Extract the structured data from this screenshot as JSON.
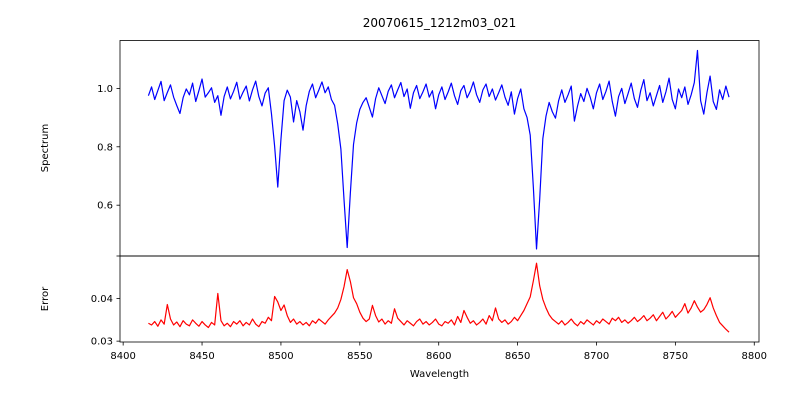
{
  "figure": {
    "title": "20070615_1212m03_021",
    "xlabel": "Wavelength",
    "background": "#ffffff",
    "spine_color": "#000000",
    "text_color": "#000000"
  },
  "chart_data": [
    {
      "type": "line",
      "name": "spectrum",
      "ylabel": "Spectrum",
      "color": "#0000ff",
      "line_width": 1.2,
      "grid": false,
      "legend": null,
      "xlim": [
        8398,
        8803
      ],
      "ylim": [
        0.426,
        1.164
      ],
      "yticks": [
        0.6,
        0.8,
        1.0
      ],
      "ytick_labels": [
        "0.6",
        "0.8",
        "1.0"
      ],
      "yticks_unlabeled": [],
      "absorption_lines": [
        {
          "center": 8498,
          "core_depth": 0.66
        },
        {
          "center": 8542,
          "core_depth": 0.455
        },
        {
          "center": 8662,
          "core_depth": 0.45
        }
      ],
      "x_start": 8416,
      "x_step": 2,
      "y": [
        0.975,
        1.005,
        0.962,
        0.993,
        1.024,
        0.958,
        0.986,
        1.012,
        0.97,
        0.941,
        0.914,
        0.968,
        0.998,
        0.978,
        1.018,
        0.955,
        0.992,
        1.032,
        0.97,
        0.985,
        1.002,
        0.952,
        0.975,
        0.908,
        0.972,
        1.005,
        0.964,
        0.99,
        1.021,
        0.963,
        0.987,
        1.008,
        0.957,
        0.995,
        1.025,
        0.972,
        0.94,
        0.984,
        1.002,
        0.913,
        0.802,
        0.662,
        0.825,
        0.958,
        0.994,
        0.97,
        0.885,
        0.958,
        0.92,
        0.857,
        0.941,
        0.99,
        1.015,
        0.968,
        0.994,
        1.022,
        0.985,
        1.005,
        0.962,
        0.942,
        0.878,
        0.792,
        0.618,
        0.455,
        0.642,
        0.808,
        0.882,
        0.928,
        0.952,
        0.968,
        0.935,
        0.902,
        0.965,
        1.002,
        0.975,
        0.948,
        0.99,
        1.012,
        0.968,
        0.995,
        1.02,
        0.972,
        0.998,
        0.932,
        0.985,
        1.01,
        0.965,
        0.988,
        1.015,
        0.97,
        0.992,
        0.93,
        0.978,
        1.005,
        0.962,
        0.988,
        1.018,
        0.975,
        0.945,
        0.992,
        1.01,
        0.968,
        0.99,
        1.022,
        0.978,
        0.952,
        0.995,
        1.015,
        0.972,
        0.998,
        0.96,
        0.985,
        1.012,
        0.97,
        0.942,
        0.988,
        0.912,
        0.965,
        0.998,
        0.93,
        0.9,
        0.84,
        0.66,
        0.45,
        0.62,
        0.828,
        0.905,
        0.952,
        0.92,
        0.898,
        0.958,
        0.995,
        0.952,
        0.978,
        1.008,
        0.888,
        0.94,
        0.982,
        0.955,
        1.0,
        0.97,
        0.93,
        0.985,
        1.015,
        0.962,
        0.99,
        1.025,
        0.955,
        0.905,
        0.972,
        1.0,
        0.948,
        0.982,
        1.018,
        0.965,
        0.935,
        0.992,
        1.03,
        0.958,
        0.985,
        0.94,
        0.975,
        1.01,
        0.952,
        0.988,
        1.035,
        0.962,
        0.93,
        0.998,
        0.968,
        1.005,
        0.945,
        0.978,
        1.02,
        1.13,
        0.958,
        0.912,
        0.985,
        1.042,
        0.955,
        0.928,
        0.995,
        0.962,
        1.008,
        0.97
      ]
    },
    {
      "type": "line",
      "name": "error",
      "ylabel": "Error",
      "xlabel": "Wavelength",
      "color": "#ff0000",
      "line_width": 1.2,
      "grid": false,
      "legend": null,
      "xlim": [
        8398,
        8803
      ],
      "ylim": [
        0.0298,
        0.05
      ],
      "yticks": [
        0.03,
        0.04
      ],
      "ytick_labels": [
        "0.03",
        "0.04"
      ],
      "yticks_unlabeled": [
        0.05
      ],
      "xticks": [
        8400,
        8450,
        8500,
        8550,
        8600,
        8650,
        8700,
        8750,
        8800
      ],
      "xtick_labels": [
        "8400",
        "8450",
        "8500",
        "8550",
        "8600",
        "8650",
        "8700",
        "8750",
        "8800"
      ],
      "x_start": 8416,
      "x_step": 2,
      "y": [
        0.0342,
        0.0338,
        0.0346,
        0.0335,
        0.035,
        0.034,
        0.0386,
        0.0352,
        0.0338,
        0.0345,
        0.0334,
        0.0348,
        0.034,
        0.0336,
        0.035,
        0.0342,
        0.0335,
        0.0346,
        0.0338,
        0.0332,
        0.0344,
        0.0338,
        0.0412,
        0.0348,
        0.0336,
        0.0342,
        0.0334,
        0.0346,
        0.034,
        0.0348,
        0.0336,
        0.0344,
        0.0338,
        0.0352,
        0.034,
        0.0334,
        0.0346,
        0.0342,
        0.0356,
        0.0348,
        0.0405,
        0.0392,
        0.0372,
        0.0385,
        0.036,
        0.0344,
        0.0352,
        0.034,
        0.0346,
        0.0338,
        0.0344,
        0.0336,
        0.0348,
        0.0342,
        0.0352,
        0.0346,
        0.034,
        0.035,
        0.0358,
        0.0366,
        0.0378,
        0.0398,
        0.0428,
        0.0468,
        0.044,
        0.0402,
        0.0388,
        0.0368,
        0.0354,
        0.0346,
        0.0352,
        0.0384,
        0.036,
        0.0345,
        0.0352,
        0.034,
        0.0348,
        0.0342,
        0.0376,
        0.0354,
        0.0346,
        0.0338,
        0.0348,
        0.0342,
        0.0336,
        0.0346,
        0.0352,
        0.034,
        0.0346,
        0.0338,
        0.0344,
        0.0352,
        0.034,
        0.0336,
        0.0346,
        0.0342,
        0.035,
        0.0338,
        0.0358,
        0.0344,
        0.0372,
        0.0356,
        0.0342,
        0.0348,
        0.0338,
        0.0344,
        0.0352,
        0.034,
        0.036,
        0.0348,
        0.0378,
        0.0352,
        0.0344,
        0.035,
        0.034,
        0.0346,
        0.0356,
        0.0348,
        0.036,
        0.0372,
        0.0388,
        0.0404,
        0.0442,
        0.0483,
        0.043,
        0.0398,
        0.0378,
        0.0362,
        0.0352,
        0.0346,
        0.034,
        0.0348,
        0.0338,
        0.0344,
        0.0352,
        0.0342,
        0.0336,
        0.0346,
        0.034,
        0.035,
        0.0344,
        0.0338,
        0.0348,
        0.0342,
        0.0352,
        0.0346,
        0.034,
        0.0354,
        0.0348,
        0.0356,
        0.0344,
        0.035,
        0.0342,
        0.0348,
        0.0356,
        0.0346,
        0.0352,
        0.036,
        0.0348,
        0.0354,
        0.0362,
        0.0348,
        0.0358,
        0.0368,
        0.0352,
        0.036,
        0.037,
        0.0356,
        0.0364,
        0.0372,
        0.0388,
        0.0366,
        0.0378,
        0.0395,
        0.038,
        0.0368,
        0.0374,
        0.0386,
        0.0402,
        0.0378,
        0.036,
        0.0344,
        0.0336,
        0.0328,
        0.0321
      ]
    }
  ]
}
